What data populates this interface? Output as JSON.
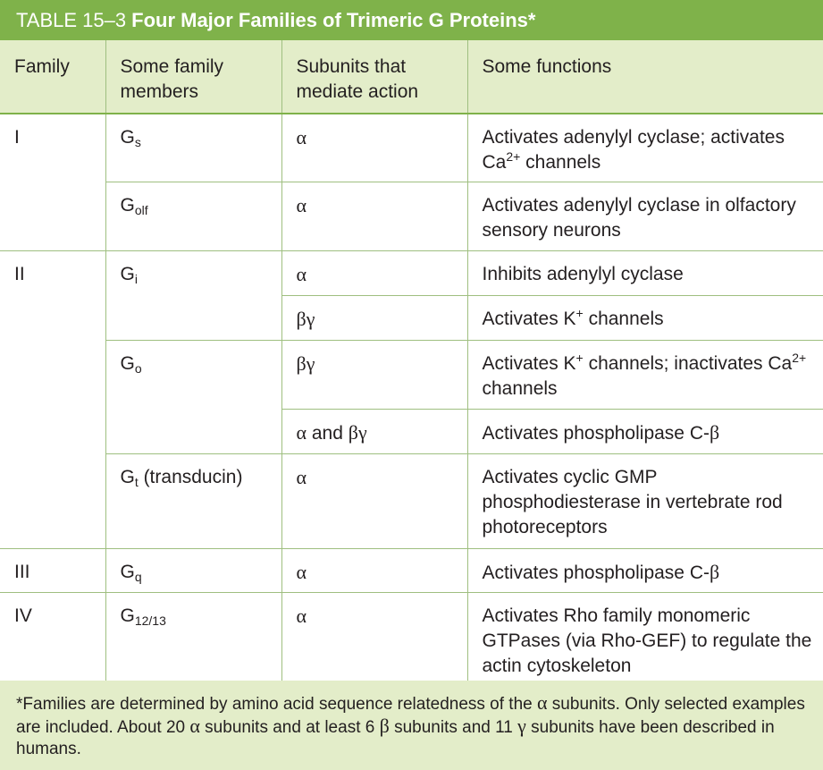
{
  "title": {
    "number": "TABLE 15–3",
    "text": "Four Major Families of Trimeric G Proteins*"
  },
  "headers": [
    "Family",
    "Some family members",
    "Subunits that mediate action",
    "Some functions"
  ],
  "rows": [
    {
      "family": "I",
      "member_base": "G",
      "member_sub": "s",
      "member_extra": "",
      "subunit": "α",
      "function": "Activates adenylyl cyclase; activates Ca",
      "function_sup": "2+",
      "function_tail": " channels"
    },
    {
      "family": "",
      "member_base": "G",
      "member_sub": "olf",
      "member_extra": "",
      "subunit": "α",
      "function": "Activates adenylyl cyclase in olfactory sensory neurons",
      "function_sup": "",
      "function_tail": ""
    },
    {
      "family": "II",
      "member_base": "G",
      "member_sub": "i",
      "member_extra": "",
      "subunit": "α",
      "function": "Inhibits adenylyl cyclase",
      "function_sup": "",
      "function_tail": ""
    },
    {
      "family": "",
      "member_base": "",
      "member_sub": "",
      "member_extra": "",
      "subunit": "βγ",
      "function": "Activates K",
      "function_sup": "+",
      "function_tail": " channels"
    },
    {
      "family": "",
      "member_base": "G",
      "member_sub": "o",
      "member_extra": "",
      "subunit": "βγ",
      "function": "Activates K",
      "function_sup": "+",
      "function_tail": " channels; inactivates Ca",
      "function_sup2": "2+",
      "function_tail2": " channels"
    },
    {
      "family": "",
      "member_base": "",
      "member_sub": "",
      "member_extra": "",
      "subunit_a": "α",
      "subunit_and": " and ",
      "subunit_b": "βγ",
      "function": "Activates phospholipase C-",
      "function_greek": "β"
    },
    {
      "family": "",
      "member_base": "G",
      "member_sub": "t",
      "member_extra": " (transducin)",
      "subunit": "α",
      "function": "Activates cyclic GMP phosphodiesterase in vertebrate rod photoreceptors",
      "function_sup": "",
      "function_tail": ""
    },
    {
      "family": "III",
      "member_base": "G",
      "member_sub": "q",
      "member_extra": "",
      "subunit": "α",
      "function": "Activates phospholipase C-",
      "function_greek": "β"
    },
    {
      "family": "IV",
      "member_base": "G",
      "member_sub": "12/13",
      "member_extra": "",
      "subunit": "α",
      "function": "Activates Rho family monomeric GTPases (via Rho-GEF) to regulate the actin cytoskeleton",
      "function_sup": "",
      "function_tail": ""
    }
  ],
  "footnote": {
    "p1": "*Families are determined by amino acid sequence relatedness of the ",
    "g1": "α",
    "p2": " subunits. Only selected examples are included. About 20 ",
    "g2": "α",
    "p3": " subunits and at least 6 ",
    "g3": "β",
    "p4": " subunits and 11 ",
    "g4": "γ",
    "p5": " subunits have been described in humans."
  }
}
